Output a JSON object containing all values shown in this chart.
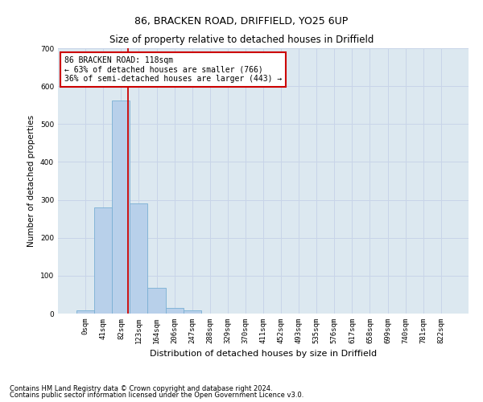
{
  "title_line1": "86, BRACKEN ROAD, DRIFFIELD, YO25 6UP",
  "title_line2": "Size of property relative to detached houses in Driffield",
  "xlabel": "Distribution of detached houses by size in Driffield",
  "ylabel": "Number of detached properties",
  "bar_labels": [
    "0sqm",
    "41sqm",
    "82sqm",
    "123sqm",
    "164sqm",
    "206sqm",
    "247sqm",
    "288sqm",
    "329sqm",
    "370sqm",
    "411sqm",
    "452sqm",
    "493sqm",
    "535sqm",
    "576sqm",
    "617sqm",
    "658sqm",
    "699sqm",
    "740sqm",
    "781sqm",
    "822sqm"
  ],
  "bar_values": [
    8,
    280,
    562,
    290,
    68,
    15,
    8,
    0,
    0,
    0,
    0,
    0,
    0,
    0,
    0,
    0,
    0,
    0,
    0,
    0,
    0
  ],
  "bar_color": "#b8d0ea",
  "bar_edgecolor": "#7aafd4",
  "grid_color": "#c8d4e8",
  "background_color": "#dce8f0",
  "annotation_line1": "86 BRACKEN ROAD: 118sqm",
  "annotation_line2": "← 63% of detached houses are smaller (766)",
  "annotation_line3": "36% of semi-detached houses are larger (443) →",
  "vline_color": "#cc0000",
  "ylim": [
    0,
    700
  ],
  "yticks": [
    0,
    100,
    200,
    300,
    400,
    500,
    600,
    700
  ],
  "footnote1": "Contains HM Land Registry data © Crown copyright and database right 2024.",
  "footnote2": "Contains public sector information licensed under the Open Government Licence v3.0.",
  "title_fontsize": 9,
  "subtitle_fontsize": 8.5,
  "xlabel_fontsize": 8,
  "ylabel_fontsize": 7.5,
  "tick_fontsize": 6.5,
  "annot_fontsize": 7,
  "footnote_fontsize": 6
}
